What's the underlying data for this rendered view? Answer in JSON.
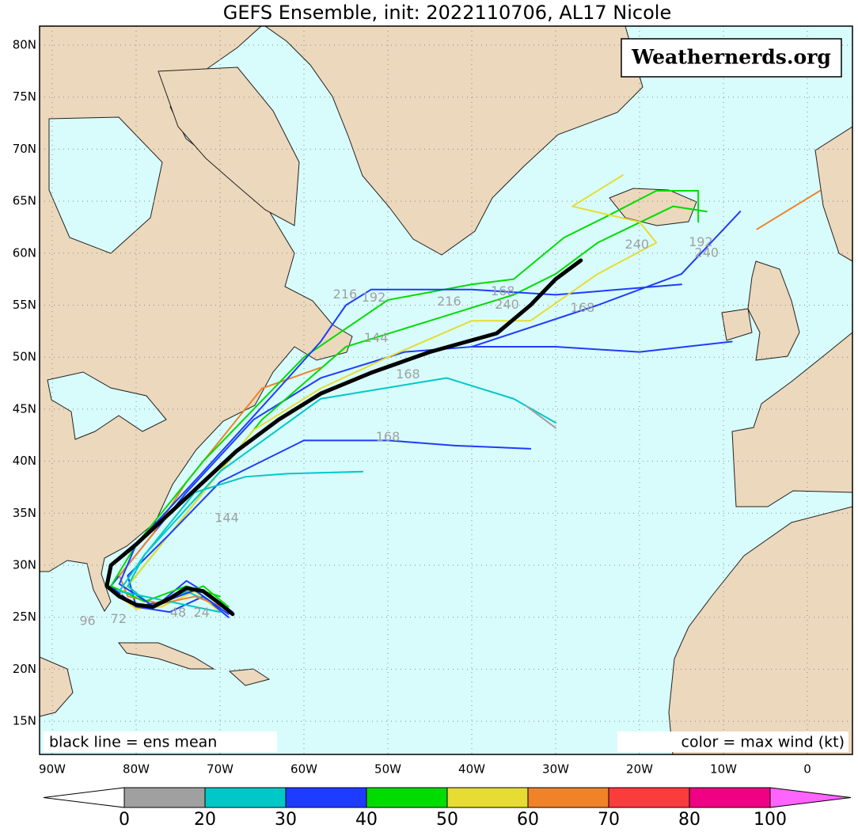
{
  "title": "GEFS Ensemble, init: 2022110706, AL17 Nicole",
  "watermark": "Weathernerds.org",
  "legend_left": "black line = ens mean",
  "legend_right": "color = max wind (kt)",
  "map": {
    "lon_ticks": [
      {
        "value": -90,
        "label": "90W"
      },
      {
        "value": -80,
        "label": "80W"
      },
      {
        "value": -70,
        "label": "70W"
      },
      {
        "value": -60,
        "label": "60W"
      },
      {
        "value": -50,
        "label": "50W"
      },
      {
        "value": -40,
        "label": "40W"
      },
      {
        "value": -30,
        "label": "30W"
      },
      {
        "value": -20,
        "label": "20W"
      },
      {
        "value": -10,
        "label": "10W"
      },
      0
    ],
    "lat_ticks": [
      {
        "value": 80,
        "label": "80N"
      },
      {
        "value": 75,
        "label": "75N"
      },
      {
        "value": 70,
        "label": "70N"
      },
      {
        "value": 65,
        "label": "65N"
      },
      {
        "value": 60,
        "label": "60N"
      },
      {
        "value": 55,
        "label": "55N"
      },
      {
        "value": 50,
        "label": "50N"
      },
      {
        "value": 45,
        "label": "45N"
      },
      {
        "value": 40,
        "label": "40N"
      },
      {
        "value": 35,
        "label": "35N"
      },
      {
        "value": 30,
        "label": "30N"
      },
      {
        "value": 25,
        "label": "25N"
      },
      {
        "value": 20,
        "label": "20N"
      },
      {
        "value": 15,
        "label": "15N"
      }
    ],
    "grid": true,
    "tracks": [
      {
        "color": "#1e3cff",
        "lon": [
          -68.5,
          -71,
          -74,
          -77,
          -80,
          -83,
          -80,
          -74,
          -66,
          -58,
          -48,
          -40,
          -30,
          -20,
          -9
        ],
        "lat": [
          25.5,
          27,
          28.5,
          26.5,
          26,
          28,
          31,
          37,
          44,
          48,
          50.5,
          51,
          51,
          50.5,
          51.5
        ]
      },
      {
        "color": "#00dc00",
        "lon": [
          -69,
          -72,
          -75,
          -78,
          -81,
          -78,
          -72,
          -65,
          -55,
          -45,
          -35,
          -30,
          -25,
          -16,
          -12
        ],
        "lat": [
          26,
          28,
          27,
          26,
          28,
          31,
          37,
          44,
          51,
          53.5,
          56,
          58,
          61,
          64.5,
          64
        ]
      },
      {
        "color": "#e6dc32",
        "lon": [
          -70,
          -73,
          -77,
          -80,
          -82,
          -79,
          -74,
          -66,
          -58,
          -50,
          -40,
          -33
        ],
        "lat": [
          25.5,
          27.5,
          26,
          25.8,
          27,
          30,
          35,
          43,
          47,
          50,
          53.5,
          53.5
        ]
      },
      {
        "color": "#1e3cff",
        "lon": [
          -69,
          -72,
          -76,
          -80,
          -81,
          -76,
          -70,
          -60,
          -50,
          -42,
          -33
        ],
        "lat": [
          25,
          27,
          25.5,
          26,
          29,
          33,
          38,
          42,
          42,
          41.5,
          41.2
        ]
      },
      {
        "color": "#00c8c8",
        "lon": [
          -70,
          -74,
          -78,
          -81,
          -79,
          -73,
          -67,
          -62,
          -53
        ],
        "lat": [
          26,
          27.5,
          26,
          28,
          31,
          37,
          38.5,
          38.8,
          39
        ]
      },
      {
        "color": "#f08228",
        "lon": [
          -69,
          -73,
          -77,
          -81,
          -82,
          -78,
          -74,
          -68,
          -65,
          -58
        ],
        "lat": [
          25.8,
          27,
          26.3,
          27,
          29,
          33,
          38,
          44,
          47,
          49
        ]
      },
      {
        "color": "#00dc00",
        "lon": [
          -70,
          -74,
          -79,
          -83,
          -80,
          -72,
          -60,
          -50,
          -40,
          -35,
          -29,
          -24,
          -18,
          -13,
          -13
        ],
        "lat": [
          27,
          28,
          26.5,
          28,
          32,
          40,
          50,
          55.5,
          57,
          57.5,
          61.5,
          63.5,
          66,
          66,
          63
        ]
      },
      {
        "color": "#1e3cff",
        "lon": [
          -69,
          -73,
          -78,
          -82,
          -80,
          -72,
          -63,
          -58,
          -55,
          -52,
          -40,
          -30,
          -15
        ],
        "lat": [
          25.3,
          27.6,
          26.1,
          28.2,
          32,
          39,
          47,
          51.5,
          55,
          56.5,
          56.5,
          56,
          57
        ]
      },
      {
        "color": "#00c8c8",
        "lon": [
          -70,
          -76,
          -82,
          -79,
          -70,
          -58,
          -43,
          -35,
          -30
        ],
        "lat": [
          25.5,
          26.5,
          27.5,
          31,
          39,
          46,
          48,
          46,
          43.7
        ]
      },
      {
        "color": "#a0a0a0",
        "lon": [
          -33.5,
          -30
        ],
        "lat": [
          45.3,
          43.2
        ]
      },
      {
        "color": "#f08228",
        "lon": [
          -6,
          1.5
        ],
        "lat": [
          62.3,
          66
        ]
      },
      {
        "color": "#1e3cff",
        "lon": [
          -40,
          -25,
          -15,
          -8
        ],
        "lat": [
          51,
          55,
          58,
          64
        ]
      },
      {
        "color": "#e6dc32",
        "lon": [
          -33,
          -25,
          -18,
          -20,
          -28,
          -25,
          -22
        ],
        "lat": [
          53.5,
          58,
          61,
          63,
          64.5,
          66,
          67.5
        ]
      }
    ],
    "mean_track": {
      "color": "#000000",
      "lon": [
        -68.5,
        -70,
        -72,
        -74,
        -76,
        -78,
        -80,
        -82,
        -83.5,
        -83,
        -80,
        -76,
        -72,
        -68,
        -63,
        -58,
        -52,
        -45,
        -37,
        -33,
        -30,
        -27
      ],
      "lat": [
        25.3,
        26.3,
        27.5,
        27.8,
        26.8,
        26,
        26.2,
        27,
        28,
        30,
        32,
        35,
        38,
        41,
        44,
        46.5,
        48.5,
        50.5,
        52.3,
        55,
        57.5,
        59.3
      ]
    },
    "hour_labels": [
      {
        "hour": 168,
        "lon": -36.3,
        "lat": 56.3
      },
      {
        "hour": 240,
        "lon": -35.8,
        "lat": 55.0
      },
      {
        "hour": 216,
        "lon": -42.7,
        "lat": 55.3
      },
      {
        "hour": 216,
        "lon": -55.1,
        "lat": 56.0
      },
      {
        "hour": 192,
        "lon": -51.7,
        "lat": 55.7
      },
      {
        "hour": 168,
        "lon": -26.8,
        "lat": 54.7
      },
      {
        "hour": 240,
        "lon": -20.3,
        "lat": 60.8
      },
      {
        "hour": 240,
        "lon": -12.0,
        "lat": 60.0
      },
      {
        "hour": 192,
        "lon": -12.7,
        "lat": 61.0
      },
      {
        "hour": 144,
        "lon": -51.4,
        "lat": 51.8
      },
      {
        "hour": 168,
        "lon": -47.6,
        "lat": 48.3
      },
      {
        "hour": 168,
        "lon": -50.0,
        "lat": 42.3
      },
      {
        "hour": 144,
        "lon": -69.2,
        "lat": 34.5
      },
      {
        "hour": 96,
        "lon": -85.8,
        "lat": 24.6
      },
      {
        "hour": 72,
        "lon": -82.1,
        "lat": 24.8
      },
      {
        "hour": 48,
        "lon": -75.0,
        "lat": 25.4
      },
      {
        "hour": 24,
        "lon": -72.2,
        "lat": 25.4
      }
    ]
  },
  "colorbar": {
    "ticks": [
      0,
      20,
      30,
      40,
      50,
      60,
      70,
      80,
      100
    ],
    "colors": [
      "#ffffff",
      "#a0a0a0",
      "#00c8c8",
      "#1e3cff",
      "#00dc00",
      "#e6dc32",
      "#f08228",
      "#fa3c3c",
      "#f00082",
      "#ff64ff"
    ]
  }
}
